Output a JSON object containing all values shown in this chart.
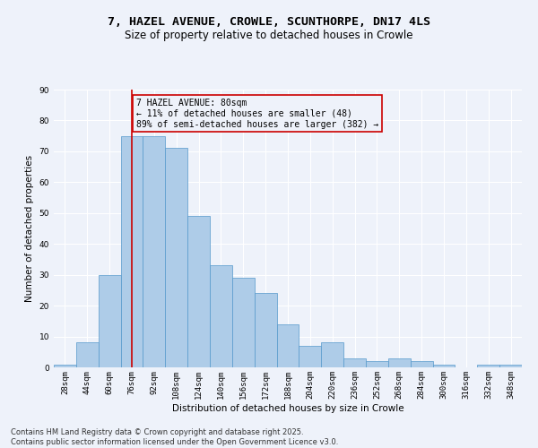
{
  "title1": "7, HAZEL AVENUE, CROWLE, SCUNTHORPE, DN17 4LS",
  "title2": "Size of property relative to detached houses in Crowle",
  "xlabel": "Distribution of detached houses by size in Crowle",
  "ylabel": "Number of detached properties",
  "bin_labels": [
    "28sqm",
    "44sqm",
    "60sqm",
    "76sqm",
    "92sqm",
    "108sqm",
    "124sqm",
    "140sqm",
    "156sqm",
    "172sqm",
    "188sqm",
    "204sqm",
    "220sqm",
    "236sqm",
    "252sqm",
    "268sqm",
    "284sqm",
    "300sqm",
    "316sqm",
    "332sqm",
    "348sqm"
  ],
  "bar_heights": [
    1,
    8,
    30,
    75,
    75,
    71,
    49,
    33,
    29,
    24,
    14,
    7,
    8,
    3,
    2,
    3,
    2,
    1,
    0,
    1,
    1
  ],
  "bar_color": "#AECCE8",
  "bar_edge_color": "#5599CC",
  "vline_x": 3,
  "vline_color": "#CC0000",
  "annotation_text": "7 HAZEL AVENUE: 80sqm\n← 11% of detached houses are smaller (48)\n89% of semi-detached houses are larger (382) →",
  "annotation_box_color": "#CC0000",
  "ylim": [
    0,
    90
  ],
  "yticks": [
    0,
    10,
    20,
    30,
    40,
    50,
    60,
    70,
    80,
    90
  ],
  "footnote": "Contains HM Land Registry data © Crown copyright and database right 2025.\nContains public sector information licensed under the Open Government Licence v3.0.",
  "bg_color": "#EEF2FA",
  "grid_color": "#FFFFFF",
  "title_fontsize": 9.5,
  "subtitle_fontsize": 8.5,
  "axis_fontsize": 7.5,
  "tick_fontsize": 6.5,
  "annotation_fontsize": 7,
  "footnote_fontsize": 6
}
